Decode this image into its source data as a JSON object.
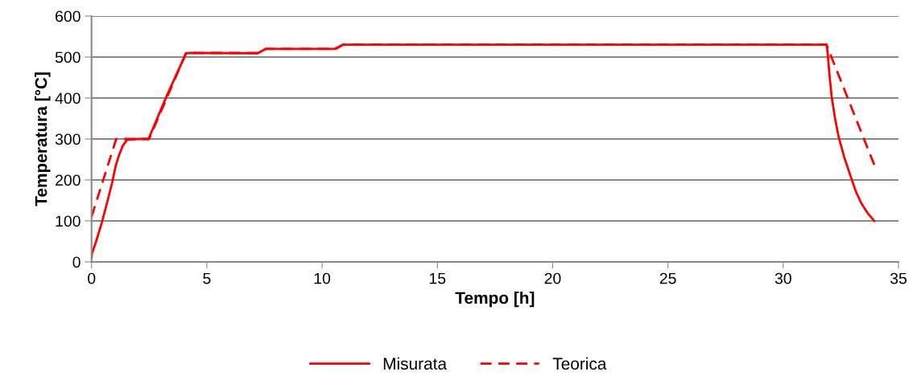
{
  "chart_data": {
    "type": "line",
    "xlabel": "Tempo [h]",
    "ylabel": "Temperatura [°C]",
    "xlim": [
      0,
      35
    ],
    "xticks": [
      0,
      5,
      10,
      15,
      20,
      25,
      30,
      35
    ],
    "ylim": [
      0,
      600
    ],
    "yticks": [
      0,
      100,
      200,
      300,
      400,
      500,
      600
    ],
    "grid": "y",
    "legend": "bottom",
    "marker": "none",
    "series": [
      {
        "name": "Misurata",
        "color": "#ff0000",
        "line_style": "solid",
        "x": [
          0,
          0.02,
          0.2,
          0.45,
          0.7,
          0.9,
          1.05,
          1.19,
          1.35,
          1.54,
          2.0,
          2.47,
          3.3,
          4.1,
          4.28,
          7.2,
          7.56,
          10.55,
          10.9,
          31.88,
          31.93,
          32.0,
          32.1,
          32.25,
          32.4,
          32.65,
          32.93,
          33.15,
          33.39,
          33.65,
          33.95
        ],
        "values": [
          10,
          21,
          50,
          97,
          150,
          195,
          235,
          260,
          283,
          298,
          300,
          300,
          410,
          509,
          510,
          509,
          520,
          520,
          530,
          530,
          509,
          460,
          404,
          350,
          306,
          255,
          208,
          172,
          143,
          120,
          100
        ]
      },
      {
        "name": "Teorica",
        "color": "#ff0000",
        "line_style": "dashed",
        "x": [
          0,
          1.07,
          2.5,
          4.1,
          7.3,
          7.56,
          10.6,
          10.9,
          31.88,
          33.95
        ],
        "values": [
          110,
          300,
          300,
          510,
          510,
          520,
          520,
          530,
          530,
          237
        ]
      }
    ]
  }
}
